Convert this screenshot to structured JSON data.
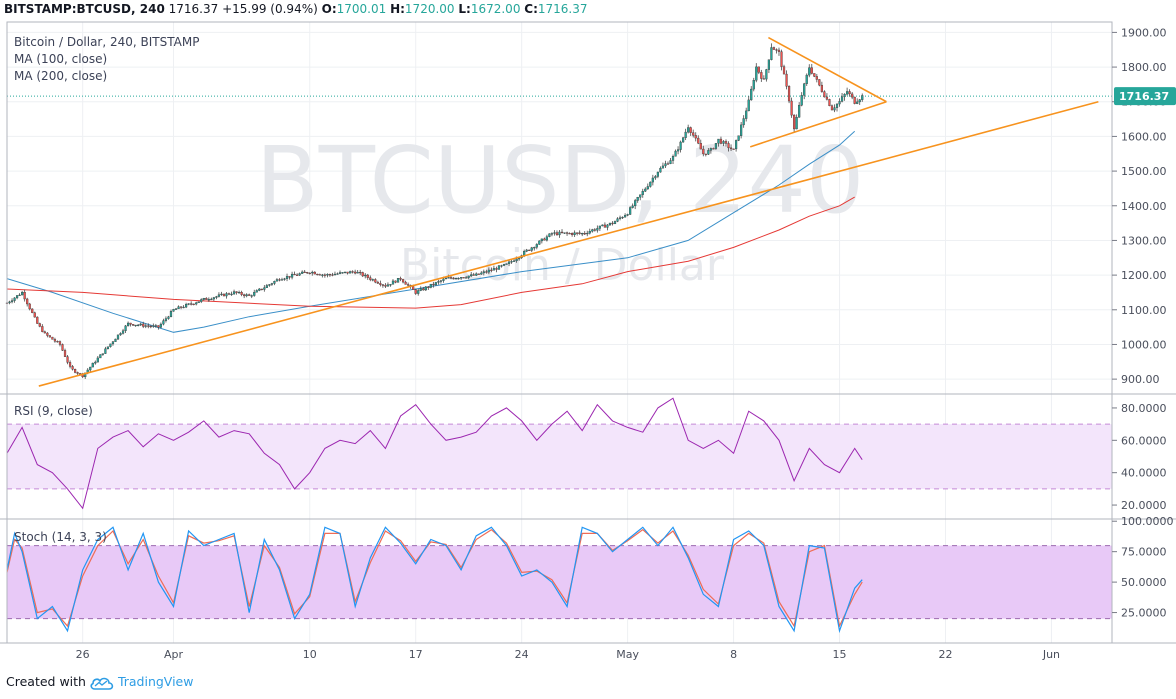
{
  "header": {
    "symbol": "BITSTAMP:BTCUSD, 240",
    "last": "1716.37",
    "change": "+15.99 (0.94%)",
    "o_label": "O:",
    "o": "1700.01",
    "h_label": "H:",
    "h": "1720.00",
    "l_label": "L:",
    "l": "1672.00",
    "c_label": "C:",
    "c": "1716.37"
  },
  "legend": {
    "title": "Bitcoin / Dollar, 240, BITSTAMP",
    "ma100": "MA (100, close)",
    "ma200": "MA (200, close)",
    "rsi": "RSI (9, close)",
    "stoch": "Stoch (14, 3, 3)"
  },
  "watermark": {
    "line1": "BTCUSD, 240",
    "line2": "Bitcoin / Dollar"
  },
  "footer": {
    "created_with": "Created with",
    "brand": "TradingView"
  },
  "colors": {
    "up": "#26a69a",
    "down": "#ef5350",
    "ma100": "#3a8fc8",
    "ma200": "#e53935",
    "trend": "#f7931e",
    "rsi": "#9c27b0",
    "stoch_k": "#2196f3",
    "stoch_d": "#ef6c55"
  },
  "chart_data": [
    {
      "type": "candlestick",
      "title": "Bitcoin / Dollar, 240, BITSTAMP",
      "y_ticks": [
        "1900.00",
        "1800.00",
        "1700.00",
        "1600.00",
        "1500.00",
        "1400.00",
        "1300.00",
        "1200.00",
        "1100.00",
        "1000.00",
        "900.00"
      ],
      "y_range": [
        860,
        1930
      ],
      "last_price": "1716.37",
      "x_tick_labels": [
        "26",
        "Apr",
        "10",
        "17",
        "24",
        "May",
        "8",
        "15",
        "22",
        "Jun"
      ],
      "x_tick_days": [
        0,
        6,
        15,
        22,
        29,
        36,
        43,
        50,
        57,
        64
      ],
      "day_range": [
        -5,
        68
      ],
      "price_path_days": [
        -5,
        -4,
        -3,
        -2.5,
        -1.5,
        -0.8,
        0,
        1,
        2,
        3,
        5,
        6,
        8,
        10,
        11,
        13,
        15,
        16,
        18,
        20,
        21,
        22,
        23,
        24,
        26,
        28,
        29,
        31,
        33,
        35,
        36,
        37,
        38,
        39,
        39.5,
        40,
        41,
        41.5,
        42,
        43,
        44,
        44.5,
        45,
        45.5,
        46,
        46.7,
        47,
        47.5,
        48,
        48.5,
        49,
        49.5,
        50,
        50.5,
        51,
        51.5
      ],
      "price_path_values": [
        1120,
        1150,
        1060,
        1030,
        1000,
        930,
        910,
        960,
        1010,
        1060,
        1050,
        1100,
        1130,
        1150,
        1140,
        1190,
        1210,
        1200,
        1210,
        1170,
        1190,
        1150,
        1170,
        1190,
        1200,
        1230,
        1260,
        1320,
        1320,
        1350,
        1380,
        1440,
        1500,
        1540,
        1580,
        1630,
        1550,
        1560,
        1590,
        1560,
        1700,
        1800,
        1760,
        1860,
        1840,
        1700,
        1620,
        1720,
        1800,
        1760,
        1720,
        1680,
        1700,
        1730,
        1700,
        1716
      ],
      "ma100_days": [
        -5,
        -2,
        2,
        6,
        8,
        11,
        15,
        22,
        29,
        36,
        40,
        43,
        46,
        48,
        50,
        51
      ],
      "ma100_values": [
        1190,
        1150,
        1090,
        1035,
        1050,
        1080,
        1110,
        1160,
        1210,
        1250,
        1300,
        1380,
        1460,
        1520,
        1575,
        1615
      ],
      "ma200_days": [
        -5,
        0,
        6,
        15,
        22,
        25,
        29,
        33,
        36,
        40,
        43,
        46,
        48,
        50,
        51
      ],
      "ma200_values": [
        1160,
        1150,
        1130,
        1110,
        1105,
        1115,
        1150,
        1175,
        1210,
        1240,
        1280,
        1330,
        1370,
        1400,
        1425
      ],
      "trendlines": [
        {
          "days": [
            -2.9,
            67.1
          ],
          "values": [
            880,
            1700
          ]
        },
        {
          "days": [
            45.3,
            53.1
          ],
          "values": [
            1885,
            1700
          ]
        },
        {
          "days": [
            44.1,
            53.1
          ],
          "values": [
            1570,
            1700
          ]
        }
      ]
    },
    {
      "type": "line",
      "title": "RSI (9, close)",
      "y_ticks": [
        "80.0000",
        "60.0000",
        "40.0000",
        "20.0000"
      ],
      "y_range": [
        12,
        88
      ],
      "band": [
        30,
        70
      ],
      "x_days": [
        -5,
        -4,
        -3,
        -2,
        -1,
        0,
        1,
        2,
        3,
        4,
        5,
        6,
        7,
        8,
        9,
        10,
        11,
        12,
        13,
        14,
        15,
        16,
        17,
        18,
        19,
        20,
        21,
        22,
        23,
        24,
        25,
        26,
        27,
        28,
        29,
        30,
        31,
        32,
        33,
        34,
        35,
        36,
        37,
        38,
        39,
        40,
        41,
        42,
        43,
        44,
        45,
        46,
        47,
        48,
        49,
        50,
        51,
        51.5
      ],
      "values": [
        52,
        68,
        45,
        40,
        30,
        18,
        55,
        62,
        66,
        56,
        64,
        60,
        65,
        72,
        62,
        66,
        64,
        52,
        45,
        30,
        40,
        55,
        60,
        58,
        66,
        55,
        75,
        82,
        70,
        60,
        62,
        65,
        75,
        80,
        72,
        60,
        70,
        78,
        66,
        82,
        72,
        68,
        65,
        80,
        86,
        60,
        55,
        60,
        52,
        78,
        72,
        60,
        35,
        55,
        45,
        40,
        55,
        48
      ]
    },
    {
      "type": "line",
      "title": "Stoch (14, 3, 3)",
      "y_ticks": [
        "100.0000",
        "75.0000",
        "50.0000",
        "25.0000"
      ],
      "y_range": [
        0,
        101
      ],
      "band": [
        20,
        80
      ],
      "x_days": [
        -5,
        -4.5,
        -4,
        -3,
        -2,
        -1,
        0,
        1,
        2,
        3,
        4,
        5,
        6,
        7,
        8,
        9,
        10,
        11,
        12,
        13,
        14,
        15,
        16,
        17,
        18,
        19,
        20,
        21,
        22,
        23,
        24,
        25,
        26,
        27,
        28,
        29,
        30,
        31,
        32,
        33,
        34,
        35,
        36,
        37,
        38,
        39,
        40,
        41,
        42,
        43,
        44,
        45,
        46,
        47,
        48,
        49,
        50,
        51,
        51.5
      ],
      "k": [
        60,
        90,
        75,
        20,
        30,
        10,
        60,
        85,
        95,
        60,
        90,
        50,
        30,
        92,
        80,
        85,
        90,
        25,
        85,
        60,
        20,
        40,
        95,
        90,
        30,
        70,
        95,
        82,
        65,
        85,
        80,
        60,
        88,
        95,
        80,
        55,
        60,
        50,
        30,
        95,
        90,
        75,
        85,
        95,
        80,
        95,
        70,
        40,
        30,
        85,
        92,
        80,
        30,
        10,
        80,
        78,
        10,
        45,
        52
      ],
      "d": [
        58,
        85,
        78,
        25,
        28,
        14,
        55,
        80,
        92,
        65,
        85,
        55,
        33,
        88,
        82,
        84,
        88,
        30,
        80,
        62,
        24,
        38,
        90,
        90,
        34,
        66,
        92,
        84,
        67,
        83,
        81,
        62,
        85,
        93,
        82,
        58,
        59,
        52,
        33,
        90,
        90,
        76,
        84,
        93,
        82,
        92,
        72,
        44,
        32,
        80,
        90,
        82,
        34,
        14,
        75,
        80,
        14,
        40,
        50
      ]
    }
  ]
}
